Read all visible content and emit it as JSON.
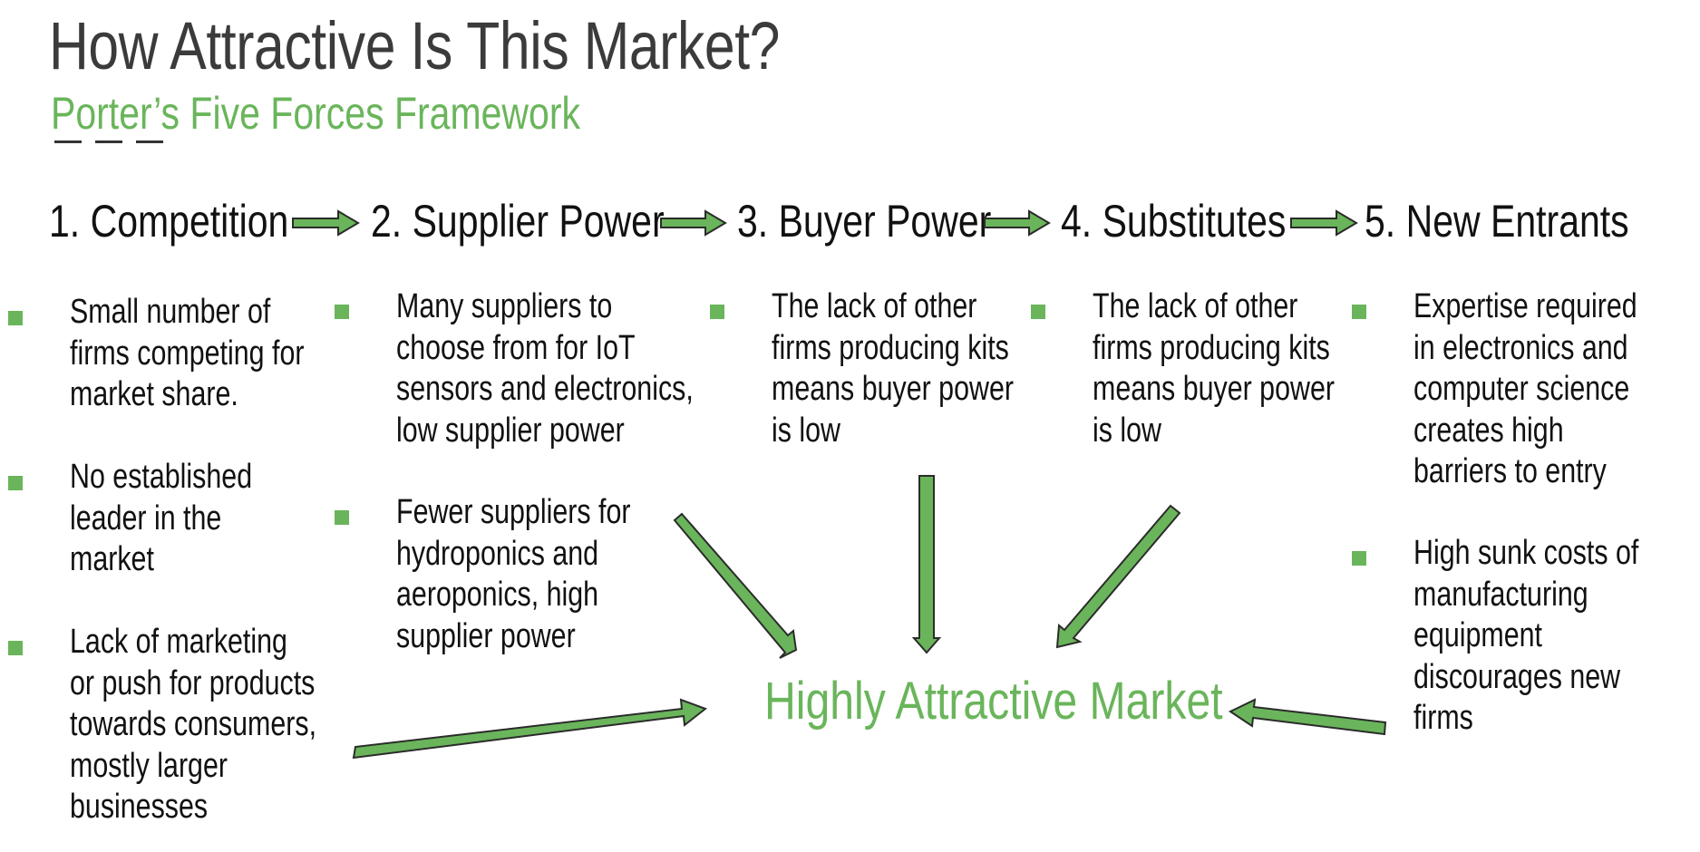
{
  "title": "How Attractive Is This Market?",
  "subtitle": "Porter’s Five Forces Framework",
  "accent_color": "#6ab55b",
  "forces": [
    {
      "label": "1. Competition",
      "bullets": [
        [
          "Small number of",
          "firms competing for",
          "market share."
        ],
        [
          "No established",
          "leader in the",
          "market"
        ],
        [
          "Lack of marketing",
          "or push for products",
          "towards consumers,",
          "mostly larger",
          "businesses"
        ]
      ]
    },
    {
      "label": "2. Supplier Power",
      "bullets": [
        [
          "Many suppliers to",
          "choose from for IoT",
          "sensors and electronics,",
          "low supplier power"
        ],
        [
          "Fewer suppliers for",
          "hydroponics and",
          "aeroponics, high",
          "supplier power"
        ]
      ]
    },
    {
      "label": "3. Buyer Power",
      "bullets": [
        [
          "The lack of other",
          "firms producing kits",
          "means buyer power",
          "is low"
        ]
      ]
    },
    {
      "label": "4. Substitutes",
      "bullets": [
        [
          "The lack of other",
          "firms producing kits",
          "means buyer power",
          "is low"
        ]
      ]
    },
    {
      "label": "5. New Entrants",
      "bullets": [
        [
          "Expertise required",
          "in electronics and",
          "computer science",
          "creates high",
          "barriers to entry"
        ],
        [
          "High sunk costs of",
          "manufacturing",
          "equipment",
          "discourages new",
          "firms"
        ]
      ]
    }
  ],
  "conclusion": "Highly Attractive Market"
}
